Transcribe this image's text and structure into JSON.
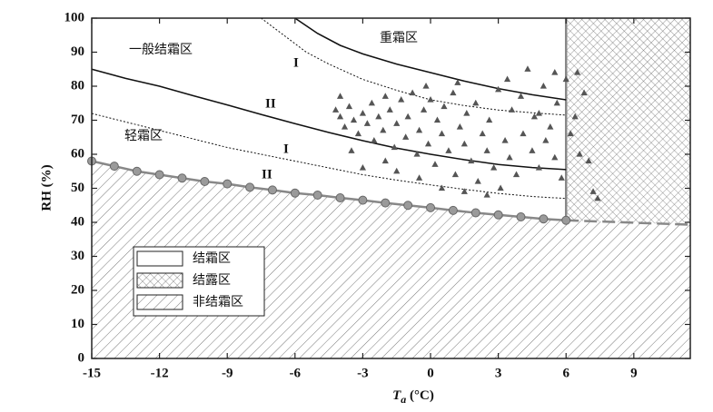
{
  "chart_data": {
    "type": "frost-map",
    "y_label": "RH (%)",
    "x_label_symbol": "T",
    "x_label_subscript": "a",
    "x_label_unit": " (°C)",
    "xlim": [
      -15,
      11.5
    ],
    "ylim": [
      0,
      100
    ],
    "xticks": [
      -15,
      -12,
      -9,
      -6,
      -3,
      0,
      3,
      6,
      9
    ],
    "yticks": [
      0,
      10,
      20,
      30,
      40,
      50,
      60,
      70,
      80,
      90,
      100
    ],
    "boundary": {
      "x": [
        -15,
        -14,
        -13,
        -12,
        -11,
        -10,
        -9,
        -8,
        -7,
        -6,
        -5,
        -4,
        -3,
        -2,
        -1,
        0,
        1,
        2,
        3,
        4,
        5,
        6
      ],
      "y": [
        58,
        56.5,
        55,
        54,
        53,
        52,
        51.3,
        50.3,
        49.5,
        48.6,
        48,
        47.2,
        46.5,
        45.7,
        45,
        44.3,
        43.5,
        42.8,
        42.2,
        41.6,
        41,
        40.6
      ]
    },
    "boundary_extension": {
      "x": [
        6,
        11.5
      ],
      "y": [
        40.6,
        39.3
      ]
    },
    "dew_line_x": 6,
    "curves": [
      {
        "style": "solid",
        "x": [
          -6,
          -5,
          -4,
          -3,
          -1.5,
          0,
          1.5,
          3,
          4.5,
          6
        ],
        "y": [
          100,
          95.5,
          92,
          89.5,
          86.5,
          84,
          81.5,
          79.3,
          77.5,
          76
        ]
      },
      {
        "style": "solid",
        "x": [
          -15,
          -13.5,
          -12,
          -10.5,
          -9,
          -7.5,
          -6,
          -4.5,
          -3,
          -1.5,
          0,
          1.5,
          3,
          4.5,
          6
        ],
        "y": [
          85,
          82.3,
          80,
          77.2,
          74.5,
          71.7,
          69,
          66.4,
          64,
          61.8,
          60,
          58.4,
          57,
          56.1,
          55.5
        ]
      },
      {
        "style": "dotted",
        "x": [
          -7.5,
          -6.5,
          -5.5,
          -4.5,
          -3,
          -1.5,
          0,
          1.5,
          3,
          4.5,
          6
        ],
        "y": [
          100,
          95,
          90,
          86.5,
          82,
          78.8,
          76,
          74.3,
          73,
          72.2,
          71.5
        ]
      },
      {
        "style": "dotted",
        "x": [
          -15,
          -13.5,
          -12,
          -10.5,
          -9,
          -7.5,
          -6,
          -4.5,
          -3,
          -1.5,
          0,
          1.5,
          3,
          4.5,
          6
        ],
        "y": [
          72,
          69.5,
          67,
          64.5,
          62,
          60,
          58,
          56,
          54,
          52.4,
          51,
          49.7,
          48.5,
          47.6,
          47
        ]
      }
    ],
    "scatter": {
      "x": [
        -4.2,
        -4,
        -3.8,
        -3.6,
        -3.4,
        -3.2,
        -3,
        -2.8,
        -2.6,
        -2.5,
        -2.3,
        -2.1,
        -2,
        -1.8,
        -1.6,
        -1.5,
        -1.3,
        -1.1,
        -1,
        -0.8,
        -0.6,
        -0.5,
        -0.3,
        -0.1,
        0,
        0.2,
        0.3,
        0.5,
        0.6,
        0.8,
        1,
        1.1,
        1.3,
        1.5,
        1.6,
        1.8,
        2,
        2.1,
        2.3,
        2.5,
        2.6,
        2.8,
        3,
        3.1,
        3.3,
        3.5,
        3.6,
        3.8,
        4,
        4.1,
        4.3,
        4.5,
        4.6,
        4.8,
        5,
        5.1,
        5.3,
        5.5,
        5.6,
        5.8,
        6,
        6.2,
        6.4,
        6.6,
        6.8,
        7,
        7.2,
        7.4,
        -2,
        -3,
        -1.5,
        -0.5,
        0.5,
        1.5,
        2.5,
        -4,
        -3.5,
        5.5,
        4.8,
        3.4,
        1.2,
        -0.2,
        6.5
      ],
      "y": [
        73,
        71,
        68,
        74,
        70,
        66,
        72,
        69,
        75,
        64,
        71,
        67,
        77,
        73,
        62,
        69,
        76,
        65,
        71,
        78,
        60,
        67,
        73,
        63,
        76,
        57,
        70,
        66,
        74,
        61,
        78,
        54,
        68,
        63,
        72,
        58,
        75,
        52,
        66,
        61,
        70,
        56,
        79,
        50,
        64,
        59,
        73,
        54,
        77,
        66,
        85,
        61,
        71,
        56,
        80,
        64,
        68,
        59,
        75,
        53,
        82,
        66,
        71,
        60,
        78,
        58,
        49,
        47,
        58,
        56,
        55,
        53,
        50,
        49,
        48,
        77,
        61,
        84,
        72,
        82,
        81,
        80,
        84
      ]
    },
    "annotations": [
      "一般结霜区",
      "重霜区",
      "I",
      "II",
      "轻霜区",
      "I",
      "II"
    ],
    "legend": [
      "结霜区",
      "结露区",
      "非结霜区"
    ]
  }
}
